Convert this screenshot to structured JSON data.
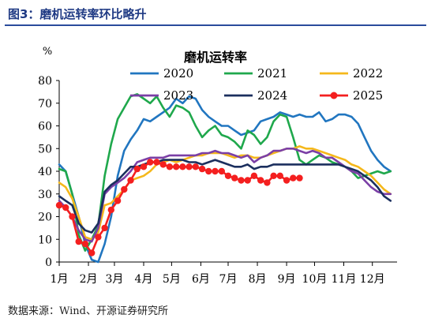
{
  "figure_title": "图3：磨机运转率环比略升",
  "source": "数据来源：Wind、开源证券研究所",
  "chart_data": {
    "type": "line",
    "title": "磨机运转率",
    "ylabel": "%",
    "ylim": [
      0,
      80
    ],
    "yticks": [
      0,
      10,
      20,
      30,
      40,
      50,
      60,
      70,
      80
    ],
    "xlim": [
      1,
      53
    ],
    "xticks": [
      {
        "label": "1月",
        "week": 1
      },
      {
        "label": "2月",
        "week": 5.5
      },
      {
        "label": "3月",
        "week": 9.5
      },
      {
        "label": "4月",
        "week": 14
      },
      {
        "label": "5月",
        "week": 18.3
      },
      {
        "label": "6月",
        "week": 22.8
      },
      {
        "label": "7月",
        "week": 27
      },
      {
        "label": "8月",
        "week": 31.5
      },
      {
        "label": "9月",
        "week": 36
      },
      {
        "label": "10月",
        "week": 40.3
      },
      {
        "label": "11月",
        "week": 44.8
      },
      {
        "label": "12月",
        "week": 49.2
      }
    ],
    "legend_placement": "top",
    "grid": false,
    "x_unit": "week",
    "series": [
      {
        "name": "2020",
        "color": "#2176c0",
        "marker": false,
        "x": [
          1,
          2,
          3,
          4,
          5,
          6,
          7,
          8,
          9,
          10,
          11,
          12,
          13,
          14,
          15,
          16,
          17,
          18,
          19,
          20,
          21,
          22,
          23,
          24,
          25,
          26,
          27,
          28,
          29,
          30,
          31,
          32,
          33,
          34,
          35,
          36,
          37,
          38,
          39,
          40,
          41,
          42,
          43,
          44,
          45,
          46,
          47,
          48,
          49,
          50,
          51,
          52
        ],
        "y": [
          43,
          40,
          30,
          20,
          8,
          1,
          0,
          8,
          20,
          38,
          49,
          54,
          58,
          63,
          62,
          64,
          66,
          68,
          72,
          70,
          73,
          72,
          67,
          64,
          62,
          60,
          60,
          58,
          56,
          57,
          58,
          62,
          63,
          64,
          66,
          65,
          64,
          65,
          64,
          64,
          66,
          62,
          63,
          65,
          65,
          64,
          61,
          55,
          49,
          45,
          42,
          40
        ]
      },
      {
        "name": "2021",
        "color": "#1fa84c",
        "marker": false,
        "x": [
          1,
          2,
          3,
          4,
          5,
          6,
          7,
          8,
          9,
          10,
          11,
          12,
          13,
          14,
          15,
          16,
          17,
          18,
          19,
          20,
          21,
          22,
          23,
          24,
          25,
          26,
          27,
          28,
          29,
          30,
          31,
          32,
          33,
          34,
          35,
          36,
          37,
          38,
          39,
          40,
          41,
          42,
          43,
          44,
          45,
          46,
          47,
          48,
          49,
          50,
          51,
          52
        ],
        "y": [
          41,
          40,
          30,
          12,
          5,
          10,
          16,
          38,
          52,
          63,
          68,
          73,
          74,
          72,
          70,
          73,
          68,
          64,
          69,
          68,
          66,
          60,
          55,
          58,
          60,
          56,
          55,
          53,
          50,
          58,
          56,
          52,
          55,
          62,
          65,
          64,
          55,
          45,
          43,
          45,
          47,
          46,
          44,
          43,
          42,
          40,
          37,
          38,
          39,
          40,
          39,
          40
        ]
      },
      {
        "name": "2022",
        "color": "#f5b81b",
        "marker": false,
        "x": [
          1,
          2,
          3,
          4,
          5,
          6,
          7,
          8,
          9,
          10,
          11,
          12,
          13,
          14,
          15,
          16,
          17,
          18,
          19,
          20,
          21,
          22,
          23,
          24,
          25,
          26,
          27,
          28,
          29,
          30,
          31,
          32,
          33,
          34,
          35,
          36,
          37,
          38,
          39,
          40,
          41,
          42,
          43,
          44,
          45,
          46,
          47,
          48,
          49,
          50,
          51,
          52
        ],
        "y": [
          35,
          33,
          28,
          20,
          11,
          10,
          13,
          25,
          26,
          29,
          32,
          36,
          37,
          38,
          40,
          43,
          44,
          45,
          44,
          45,
          46,
          47,
          47,
          48,
          48,
          48,
          47,
          46,
          47,
          47,
          46,
          46,
          47,
          48,
          49,
          50,
          50,
          51,
          50,
          50,
          49,
          48,
          47,
          46,
          45,
          43,
          42,
          40,
          38,
          35,
          32,
          30
        ]
      },
      {
        "name": "2023",
        "color": "#7b3fa6",
        "marker": false,
        "x": [
          1,
          2,
          3,
          4,
          5,
          6,
          7,
          8,
          9,
          10,
          11,
          12,
          13,
          14,
          15,
          16,
          17,
          18,
          19,
          20,
          21,
          22,
          23,
          24,
          25,
          26,
          27,
          28,
          29,
          30,
          31,
          32,
          33,
          34,
          35,
          36,
          37,
          38,
          39,
          40,
          41,
          42,
          43,
          44,
          45,
          46,
          47,
          48,
          49,
          50,
          51,
          52
        ],
        "y": [
          27,
          24,
          20,
          14,
          10,
          9,
          15,
          30,
          33,
          35,
          37,
          40,
          44,
          45,
          46,
          46,
          46,
          47,
          47,
          47,
          47,
          47,
          48,
          48,
          49,
          48,
          48,
          47,
          46,
          47,
          44,
          46,
          47,
          49,
          49,
          50,
          50,
          49,
          48,
          49,
          48,
          46,
          46,
          44,
          42,
          40,
          39,
          36,
          33,
          31,
          30,
          30
        ]
      },
      {
        "name": "2024",
        "color": "#1b2f5e",
        "marker": false,
        "x": [
          1,
          2,
          3,
          4,
          5,
          6,
          7,
          8,
          9,
          10,
          11,
          12,
          13,
          14,
          15,
          16,
          17,
          18,
          19,
          20,
          21,
          22,
          23,
          24,
          25,
          26,
          27,
          28,
          29,
          30,
          31,
          32,
          33,
          34,
          35,
          36,
          37,
          38,
          39,
          40,
          41,
          42,
          43,
          44,
          45,
          46,
          47,
          48,
          49,
          50,
          51,
          52
        ],
        "y": [
          29,
          27,
          25,
          17,
          14,
          13,
          17,
          31,
          34,
          36,
          39,
          42,
          42,
          43,
          44,
          44,
          45,
          45,
          45,
          45,
          44,
          44,
          43,
          44,
          45,
          44,
          43,
          42,
          42,
          43,
          41,
          42,
          42,
          43,
          43,
          43,
          43,
          43,
          43,
          43,
          43,
          43,
          43,
          43,
          42,
          41,
          40,
          38,
          36,
          33,
          29,
          27
        ]
      },
      {
        "name": "2025",
        "color": "#f41f1f",
        "marker": true,
        "x": [
          1,
          2,
          3,
          4,
          5,
          6,
          7,
          8,
          9,
          10,
          11,
          12,
          13,
          14,
          15,
          16,
          17,
          18,
          19,
          20,
          21,
          22,
          23,
          24,
          25,
          26,
          27,
          28,
          29,
          30,
          31,
          32,
          33,
          34,
          35,
          36,
          37,
          38
        ],
        "y": [
          25,
          24,
          20,
          9,
          8,
          4,
          11,
          15,
          23,
          27,
          32,
          36,
          41,
          42,
          44,
          44,
          43,
          42,
          42,
          42,
          42,
          42,
          41,
          40,
          40,
          40,
          38,
          37,
          36,
          36,
          38,
          36,
          35,
          38,
          38,
          36,
          37,
          37
        ]
      }
    ]
  }
}
